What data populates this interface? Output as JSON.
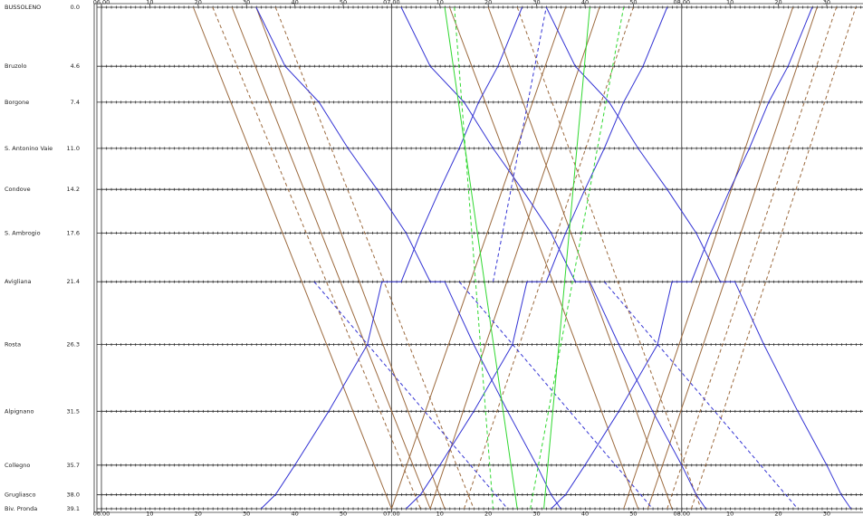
{
  "chart_data": {
    "type": "train-graph",
    "station_names": [
      "BUSSOLENO",
      "Bruzolo",
      "Borgone",
      "S. Antonino Vaie",
      "Condove",
      "S. Ambrogio",
      "Avigliana",
      "Rosta",
      "Alpignano",
      "Collegno",
      "Grugliasco",
      "Biv. Pronda"
    ],
    "yticks": [
      {
        "value": 0,
        "label": "0.0"
      },
      {
        "value": 4.6,
        "label": "4.6"
      },
      {
        "value": 7.4,
        "label": "7.4"
      },
      {
        "value": 11,
        "label": "11.0"
      },
      {
        "value": 14.2,
        "label": "14.2"
      },
      {
        "value": 17.6,
        "label": "17.6"
      },
      {
        "value": 21.4,
        "label": "21.4"
      },
      {
        "value": 26.3,
        "label": "26.3"
      },
      {
        "value": 31.5,
        "label": "31.5"
      },
      {
        "value": 35.7,
        "label": "35.7"
      },
      {
        "value": 38,
        "label": "38.0"
      },
      {
        "value": 39.1,
        "label": "39.1"
      }
    ],
    "ylim": [
      0,
      39.1
    ],
    "xlim": [
      360,
      517.5
    ],
    "xticks": [
      {
        "value": 360,
        "label": "06.00"
      },
      {
        "value": 370,
        "label": "10"
      },
      {
        "value": 380,
        "label": "20"
      },
      {
        "value": 390,
        "label": "30"
      },
      {
        "value": 400,
        "label": "40"
      },
      {
        "value": 410,
        "label": "50"
      },
      {
        "value": 420,
        "label": "07.00"
      },
      {
        "value": 430,
        "label": "10"
      },
      {
        "value": 440,
        "label": "20"
      },
      {
        "value": 450,
        "label": "30"
      },
      {
        "value": 460,
        "label": "40"
      },
      {
        "value": 470,
        "label": "50"
      },
      {
        "value": 480,
        "label": "08.00"
      },
      {
        "value": 490,
        "label": "10"
      },
      {
        "value": 500,
        "label": "20"
      },
      {
        "value": 510,
        "label": "30"
      }
    ],
    "series": [
      {
        "color": "#9c6a3e",
        "dashed": false,
        "x": [
          379,
          420
        ],
        "values": [
          0,
          39.1
        ]
      },
      {
        "color": "#9c6a3e",
        "dashed": false,
        "x": [
          387,
          428
        ],
        "values": [
          0,
          39.1
        ]
      },
      {
        "color": "#9c6a3e",
        "dashed": false,
        "x": [
          392,
          431
        ],
        "values": [
          0,
          39.1
        ]
      },
      {
        "color": "#9c6a3e",
        "dashed": true,
        "x": [
          396,
          437
        ],
        "values": [
          0,
          39.1
        ]
      },
      {
        "color": "#9c6a3e",
        "dashed": true,
        "x": [
          383,
          426
        ],
        "values": [
          0,
          39.1
        ]
      },
      {
        "color": "#9c6a3e",
        "dashed": false,
        "x": [
          432,
          471
        ],
        "values": [
          0,
          39.1
        ]
      },
      {
        "color": "#9c6a3e",
        "dashed": false,
        "x": [
          440,
          478
        ],
        "values": [
          0,
          39.1
        ]
      },
      {
        "color": "#9c6a3e",
        "dashed": true,
        "x": [
          446,
          484
        ],
        "values": [
          0,
          39.1
        ]
      },
      {
        "color": "#9c6a3e",
        "dashed": false,
        "x": [
          420,
          456
        ],
        "values": [
          39.1,
          0
        ]
      },
      {
        "color": "#9c6a3e",
        "dashed": false,
        "x": [
          428,
          463
        ],
        "values": [
          39.1,
          0
        ]
      },
      {
        "color": "#9c6a3e",
        "dashed": true,
        "x": [
          435,
          470
        ],
        "values": [
          39.1,
          0
        ]
      },
      {
        "color": "#9c6a3e",
        "dashed": false,
        "x": [
          468,
          503
        ],
        "values": [
          39.1,
          0
        ]
      },
      {
        "color": "#9c6a3e",
        "dashed": false,
        "x": [
          473,
          508
        ],
        "values": [
          39.1,
          0
        ]
      },
      {
        "color": "#9c6a3e",
        "dashed": true,
        "x": [
          477,
          512
        ],
        "values": [
          39.1,
          0
        ]
      },
      {
        "color": "#9c6a3e",
        "dashed": true,
        "x": [
          482,
          516
        ],
        "values": [
          39.1,
          0
        ]
      },
      {
        "color": "#3434d4",
        "dashed": false,
        "x": [
          392,
          398,
          405,
          411,
          417,
          423,
          428,
          431,
          437,
          444,
          450,
          453,
          455
        ],
        "values": [
          0,
          4.6,
          7.4,
          11,
          14.2,
          17.6,
          21.4,
          21.4,
          26.3,
          31.5,
          35.7,
          38,
          39.1
        ]
      },
      {
        "color": "#3434d4",
        "dashed": false,
        "x": [
          393,
          396,
          400,
          407,
          415,
          418,
          422,
          426,
          430,
          434,
          438,
          442,
          447
        ],
        "values": [
          39.1,
          38,
          35.7,
          31.5,
          26.3,
          21.4,
          21.4,
          17.6,
          14.2,
          11,
          7.4,
          4.6,
          0
        ]
      },
      {
        "color": "#3434d4",
        "dashed": false,
        "x": [
          422,
          428,
          435,
          441,
          447,
          453,
          458,
          461,
          467,
          474,
          480,
          483,
          485
        ],
        "values": [
          0,
          4.6,
          7.4,
          11,
          14.2,
          17.6,
          21.4,
          21.4,
          26.3,
          31.5,
          35.7,
          38,
          39.1
        ]
      },
      {
        "color": "#3434d4",
        "dashed": false,
        "x": [
          423,
          426,
          430,
          437,
          445,
          448,
          452,
          456,
          460,
          464,
          468,
          472,
          477
        ],
        "values": [
          39.1,
          38,
          35.7,
          31.5,
          26.3,
          21.4,
          21.4,
          17.6,
          14.2,
          11,
          7.4,
          4.6,
          0
        ]
      },
      {
        "color": "#3434d4",
        "dashed": false,
        "x": [
          452,
          458,
          465,
          471,
          477,
          483,
          488,
          491,
          497,
          504,
          510,
          513,
          515
        ],
        "values": [
          0,
          4.6,
          7.4,
          11,
          14.2,
          17.6,
          21.4,
          21.4,
          26.3,
          31.5,
          35.7,
          38,
          39.1
        ]
      },
      {
        "color": "#3434d4",
        "dashed": false,
        "x": [
          453,
          456,
          460,
          467,
          475,
          478,
          482,
          486,
          490,
          494,
          498,
          502,
          507
        ],
        "values": [
          39.1,
          38,
          35.7,
          31.5,
          26.3,
          21.4,
          21.4,
          17.6,
          14.2,
          11,
          7.4,
          4.6,
          0
        ]
      },
      {
        "color": "#3434d4",
        "dashed": true,
        "x": [
          404,
          444
        ],
        "values": [
          21.4,
          39.1
        ]
      },
      {
        "color": "#3434d4",
        "dashed": true,
        "x": [
          434,
          474
        ],
        "values": [
          21.4,
          39.1
        ]
      },
      {
        "color": "#3434d4",
        "dashed": true,
        "x": [
          464,
          504
        ],
        "values": [
          21.4,
          39.1
        ]
      },
      {
        "color": "#3434d4",
        "dashed": true,
        "x": [
          441,
          452
        ],
        "values": [
          21.4,
          0
        ]
      },
      {
        "color": "#30d830",
        "dashed": false,
        "x": [
          431,
          446
        ],
        "values": [
          0,
          39.1
        ]
      },
      {
        "color": "#30d830",
        "dashed": true,
        "x": [
          433,
          441
        ],
        "values": [
          0,
          39.1
        ]
      },
      {
        "color": "#30d830",
        "dashed": false,
        "x": [
          451.5,
          461
        ],
        "values": [
          39.1,
          0
        ]
      },
      {
        "color": "#30d830",
        "dashed": true,
        "x": [
          448.7,
          468
        ],
        "values": [
          39.1,
          0
        ]
      }
    ]
  }
}
